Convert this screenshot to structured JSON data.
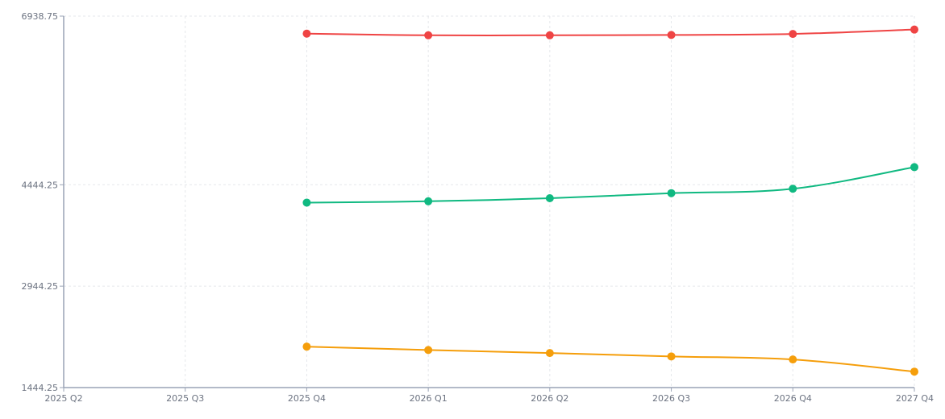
{
  "chart_data": {
    "type": "line",
    "title": "",
    "xlabel": "",
    "ylabel": "",
    "categories": [
      "2025 Q2",
      "2025 Q3",
      "2025 Q4",
      "2026 Q1",
      "2026 Q2",
      "2026 Q3",
      "2026 Q4",
      "2027 Q4"
    ],
    "yticks": [
      "6938.75",
      "4444.25",
      "2944.25",
      "1444.25"
    ],
    "ylim": [
      1444.25,
      6938.75
    ],
    "grid": true,
    "legend": "none",
    "series": [
      {
        "color": "#ef4444",
        "values": [
          null,
          null,
          6680,
          6655,
          6655,
          6660,
          6675,
          6740
        ]
      },
      {
        "color": "#10b981",
        "values": [
          null,
          null,
          4180,
          4200,
          4245,
          4320,
          4385,
          4705
        ]
      },
      {
        "color": "#f59e0b",
        "values": [
          null,
          null,
          2050,
          2000,
          1955,
          1905,
          1860,
          1680
        ]
      }
    ]
  }
}
